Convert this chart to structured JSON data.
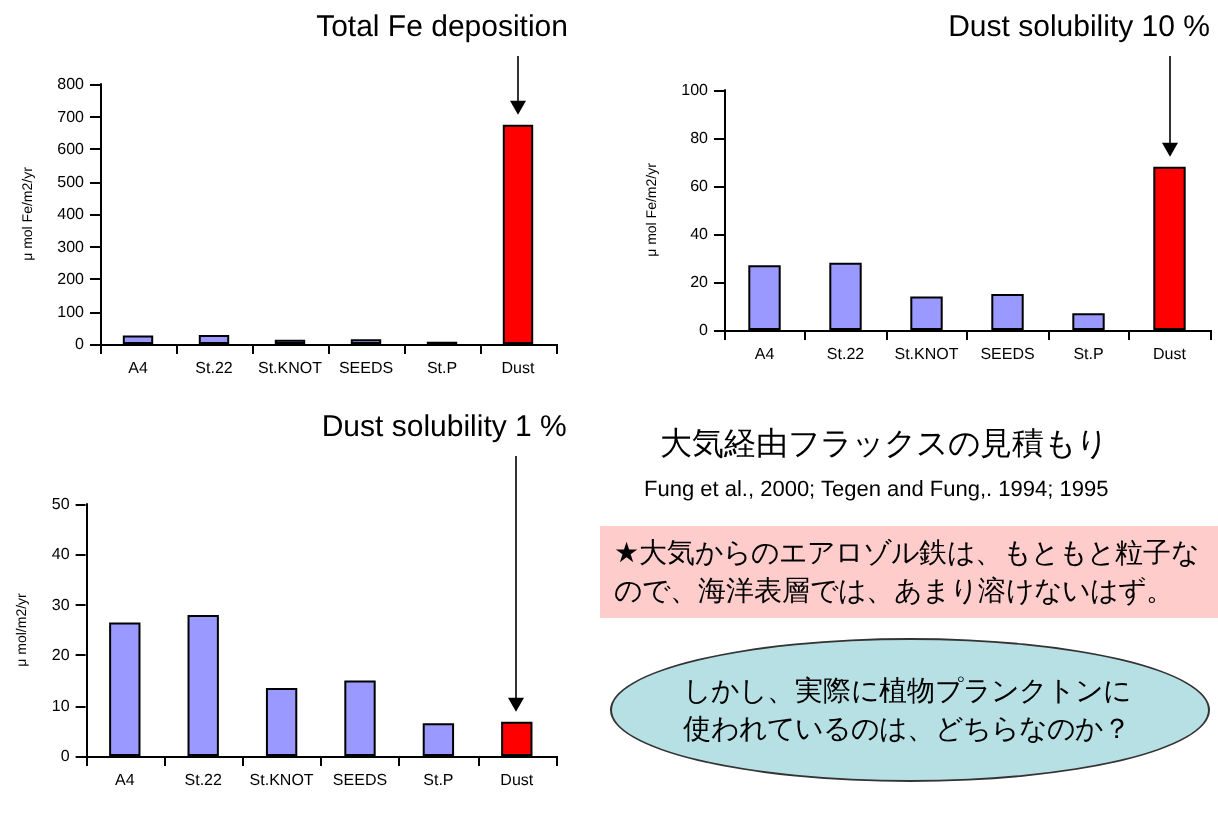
{
  "chart_data": [
    {
      "type": "bar",
      "categories": [
        "A4",
        "St.22",
        "St.KNOT",
        "SEEDS",
        "St.P",
        "Dust"
      ],
      "values": [
        26,
        28,
        13,
        15,
        7,
        675
      ],
      "colors": [
        "#9999ff",
        "#9999ff",
        "#9999ff",
        "#9999ff",
        "#9999ff",
        "#ff0000"
      ],
      "ylabel": "μ mol Fe/m2/yr",
      "ylim": [
        0,
        800
      ],
      "yticks": [
        0,
        100,
        200,
        300,
        400,
        500,
        600,
        700,
        800
      ],
      "annotations": [
        "Total Fe deposition"
      ]
    },
    {
      "type": "bar",
      "categories": [
        "A4",
        "St.22",
        "St.KNOT",
        "SEEDS",
        "St.P",
        "Dust"
      ],
      "values": [
        27,
        28,
        14,
        15,
        7,
        68
      ],
      "colors": [
        "#9999ff",
        "#9999ff",
        "#9999ff",
        "#9999ff",
        "#9999ff",
        "#ff0000"
      ],
      "ylabel": "μ mol Fe/m2/yr",
      "ylim": [
        0,
        100
      ],
      "yticks": [
        0,
        20,
        40,
        60,
        80,
        100
      ],
      "annotations": [
        "Dust solubility 10 %"
      ]
    },
    {
      "type": "bar",
      "categories": [
        "A4",
        "St.22",
        "St.KNOT",
        "SEEDS",
        "St.P",
        "Dust"
      ],
      "values": [
        26.5,
        28,
        13.5,
        15,
        6.5,
        6.8
      ],
      "colors": [
        "#9999ff",
        "#9999ff",
        "#9999ff",
        "#9999ff",
        "#9999ff",
        "#ff0000"
      ],
      "ylabel": "μ mol/m2/yr",
      "ylim": [
        0,
        50
      ],
      "yticks": [
        0,
        10,
        20,
        30,
        40,
        50
      ],
      "annotations": [
        "Dust solubility 1 %"
      ]
    },
    {
      "type": "other",
      "title": "大気経由フラックスの見積もり",
      "subtitle": "Fung et al., 2000; Tegen and Fung,. 1994; 1995",
      "annotations": [
        "★大気からのエアロゾル鉄は、もともと粒子なので、海洋表層では、あまり溶けないはず。",
        "しかし、実際に植物プランクトンに使われているのは、どちらなのか？"
      ]
    }
  ]
}
